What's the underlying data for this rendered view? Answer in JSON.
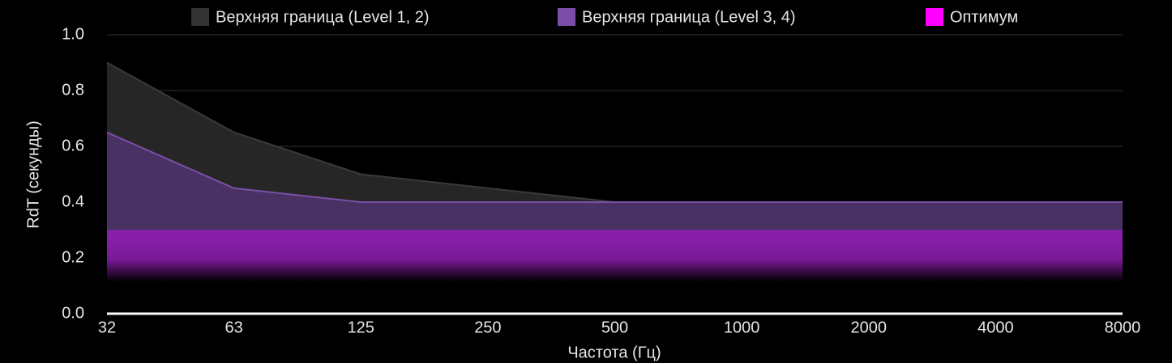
{
  "chart_data": {
    "type": "area",
    "x_label": "Частота (Гц)",
    "y_label": "RdT (секунды)",
    "categories": [
      "32",
      "63",
      "125",
      "250",
      "500",
      "1000",
      "2000",
      "4000",
      "8000"
    ],
    "series": [
      {
        "name": "Верхняя граница (Level 1, 2)",
        "color": "#333333",
        "values": [
          0.9,
          0.65,
          0.5,
          0.45,
          0.4,
          0.4,
          0.4,
          0.4,
          0.4
        ]
      },
      {
        "name": "Верхняя граница (Level 3, 4)",
        "color": "#7b4fa8",
        "values": [
          0.65,
          0.45,
          0.4,
          0.4,
          0.4,
          0.4,
          0.4,
          0.4,
          0.4
        ]
      },
      {
        "name": "Оптимум",
        "color": "#ff00ff",
        "values": [
          0.3,
          0.3,
          0.3,
          0.3,
          0.3,
          0.3,
          0.3,
          0.3,
          0.3
        ]
      }
    ],
    "ylim": [
      0,
      1
    ],
    "yticks": [
      {
        "value": 0,
        "label": "0.0"
      },
      0.2,
      0.4,
      0.6,
      0.8,
      {
        "value": 1,
        "label": "1.0"
      }
    ],
    "grid": true,
    "legend": "top"
  }
}
